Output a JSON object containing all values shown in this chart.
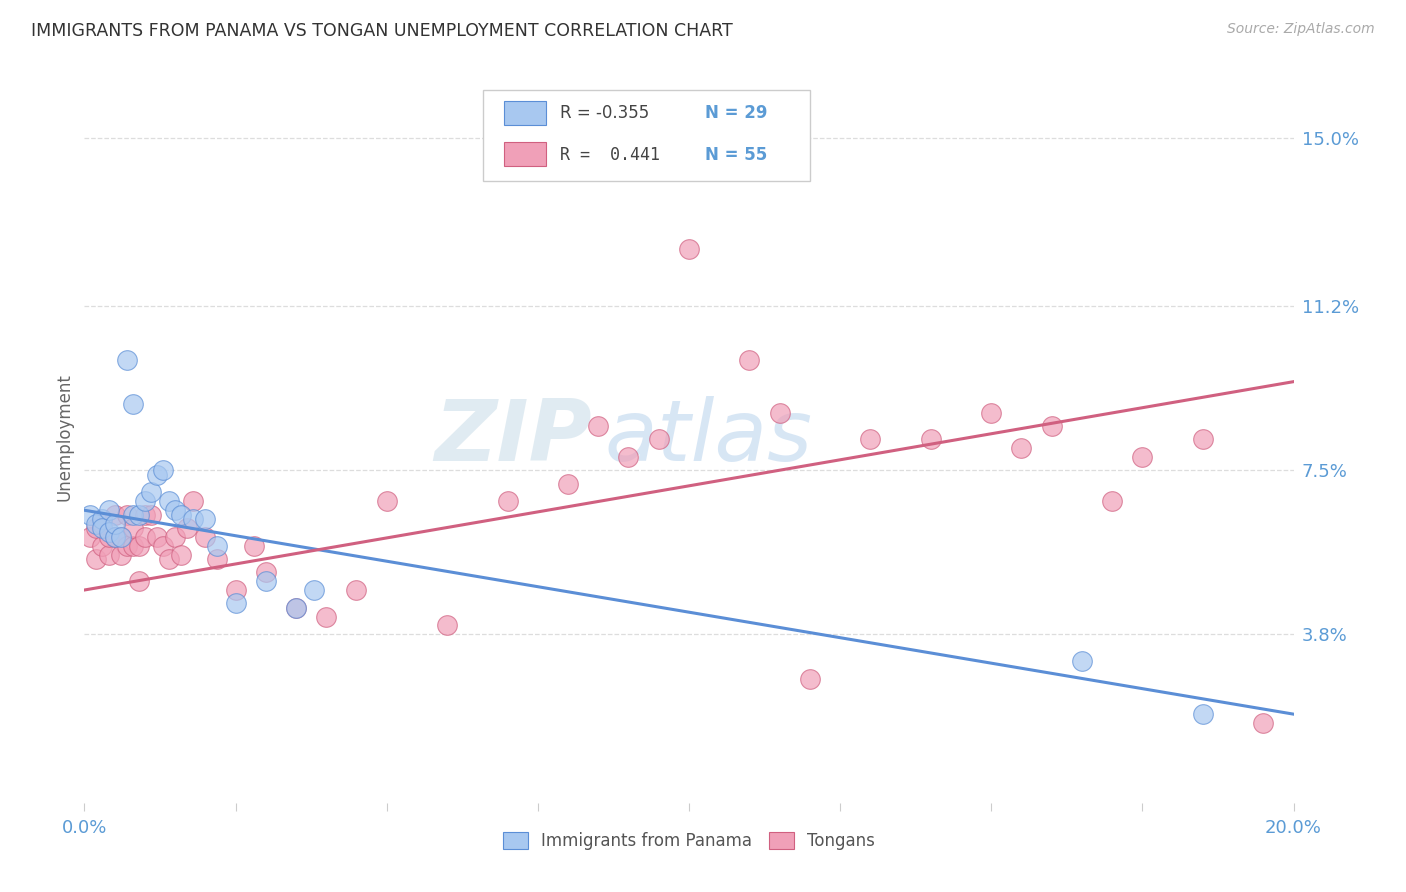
{
  "title": "IMMIGRANTS FROM PANAMA VS TONGAN UNEMPLOYMENT CORRELATION CHART",
  "source": "Source: ZipAtlas.com",
  "ylabel": "Unemployment",
  "ytick_labels": [
    "15.0%",
    "11.2%",
    "7.5%",
    "3.8%"
  ],
  "ytick_values": [
    0.15,
    0.112,
    0.075,
    0.038
  ],
  "xlim": [
    0.0,
    0.2
  ],
  "ylim": [
    0.0,
    0.165
  ],
  "color_blue": "#a8c8f0",
  "color_pink": "#f0a0b8",
  "color_blue_line": "#5b8ed6",
  "color_pink_line": "#d06080",
  "color_text_blue": "#5b9bd5",
  "color_axis_label": "#5b9bd5",
  "blue_scatter_x": [
    0.001,
    0.002,
    0.003,
    0.003,
    0.004,
    0.004,
    0.005,
    0.005,
    0.006,
    0.007,
    0.008,
    0.008,
    0.009,
    0.01,
    0.011,
    0.012,
    0.013,
    0.014,
    0.015,
    0.016,
    0.018,
    0.02,
    0.022,
    0.025,
    0.03,
    0.035,
    0.038,
    0.165,
    0.185
  ],
  "blue_scatter_y": [
    0.065,
    0.063,
    0.064,
    0.062,
    0.066,
    0.061,
    0.06,
    0.063,
    0.06,
    0.1,
    0.09,
    0.065,
    0.065,
    0.068,
    0.07,
    0.074,
    0.075,
    0.068,
    0.066,
    0.065,
    0.064,
    0.064,
    0.058,
    0.045,
    0.05,
    0.044,
    0.048,
    0.032,
    0.02
  ],
  "pink_scatter_x": [
    0.001,
    0.002,
    0.002,
    0.003,
    0.003,
    0.004,
    0.004,
    0.005,
    0.005,
    0.006,
    0.006,
    0.007,
    0.007,
    0.008,
    0.008,
    0.009,
    0.009,
    0.01,
    0.01,
    0.011,
    0.012,
    0.013,
    0.014,
    0.015,
    0.016,
    0.017,
    0.018,
    0.02,
    0.022,
    0.025,
    0.028,
    0.03,
    0.035,
    0.04,
    0.045,
    0.06,
    0.07,
    0.08,
    0.085,
    0.09,
    0.095,
    0.1,
    0.11,
    0.115,
    0.13,
    0.14,
    0.15,
    0.155,
    0.16,
    0.17,
    0.175,
    0.185,
    0.195,
    0.05,
    0.12
  ],
  "pink_scatter_y": [
    0.06,
    0.055,
    0.062,
    0.058,
    0.063,
    0.056,
    0.06,
    0.06,
    0.065,
    0.06,
    0.056,
    0.065,
    0.058,
    0.058,
    0.062,
    0.05,
    0.058,
    0.065,
    0.06,
    0.065,
    0.06,
    0.058,
    0.055,
    0.06,
    0.056,
    0.062,
    0.068,
    0.06,
    0.055,
    0.048,
    0.058,
    0.052,
    0.044,
    0.042,
    0.048,
    0.04,
    0.068,
    0.072,
    0.085,
    0.078,
    0.082,
    0.125,
    0.1,
    0.088,
    0.082,
    0.082,
    0.088,
    0.08,
    0.085,
    0.068,
    0.078,
    0.082,
    0.018,
    0.068,
    0.028
  ],
  "blue_line_x": [
    0.0,
    0.2
  ],
  "blue_line_y": [
    0.066,
    0.02
  ],
  "pink_line_x": [
    0.0,
    0.2
  ],
  "pink_line_y": [
    0.048,
    0.095
  ],
  "watermark_zip": "ZIP",
  "watermark_atlas": "atlas",
  "legend_label_blue": "Immigrants from Panama",
  "legend_label_pink": "Tongans",
  "xtick_positions": [
    0.0,
    0.025,
    0.05,
    0.075,
    0.1,
    0.125,
    0.15,
    0.175,
    0.2
  ]
}
